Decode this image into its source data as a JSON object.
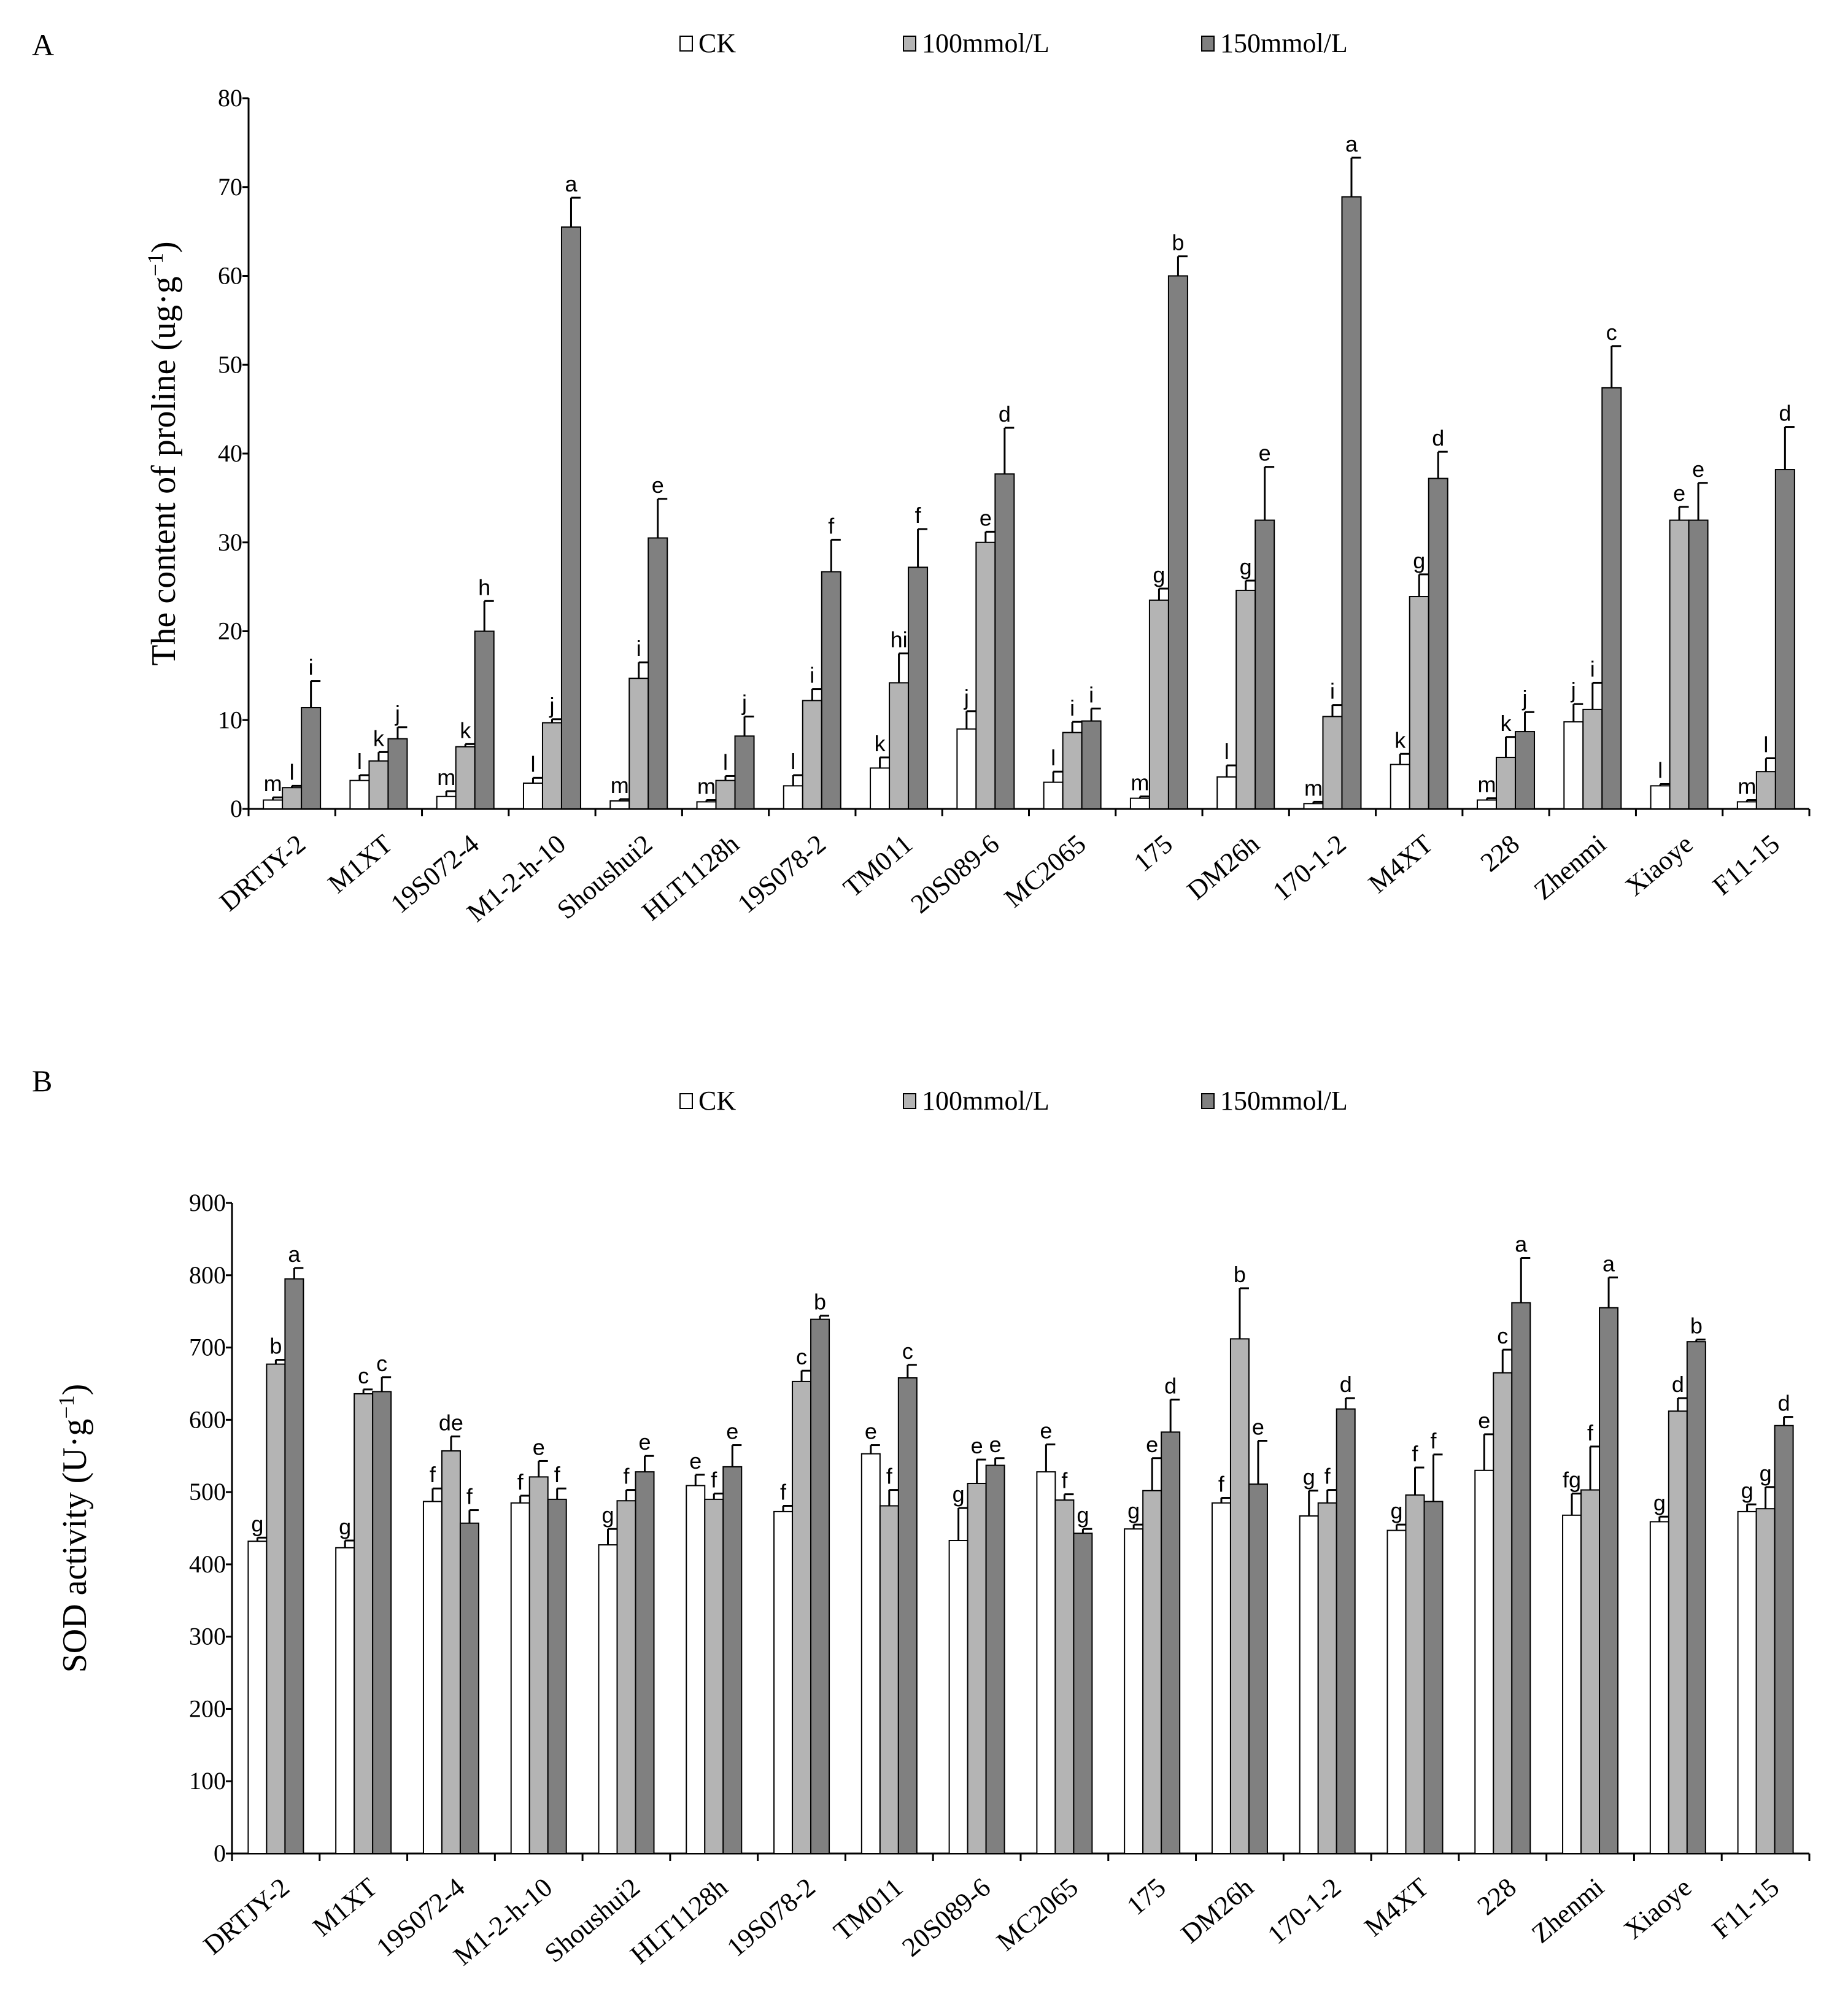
{
  "colors": {
    "CK": "#ffffff",
    "100mmol/L": "#b4b4b4",
    "150mmol/L": "#808080",
    "axis": "#000000"
  },
  "chart_data": [
    {
      "type": "bar",
      "panel": "A",
      "title": "",
      "xlabel": "",
      "ylabel": "The content of proline (ug·g⁻¹)",
      "ylabel_base": "The content of proline (ug·g",
      "ylabel_sup": "−1",
      "ylabel_close": ")",
      "ylim": [
        0,
        80
      ],
      "yticks": [
        0,
        10,
        20,
        30,
        40,
        50,
        60,
        70,
        80
      ],
      "legend_position": "top",
      "categories": [
        "DRTJY-2",
        "M1XT",
        "19S072-4",
        "M1-2-h-10",
        "Shoushui2",
        "HLT1128h",
        "19S078-2",
        "TM011",
        "20S089-6",
        "MC2065",
        "175",
        "DM26h",
        "170-1-2",
        "M4XT",
        "228",
        "Zhenmi",
        "Xiaoye",
        "F11-15"
      ],
      "series": [
        {
          "name": "CK",
          "values": [
            1.0,
            3.2,
            1.4,
            2.9,
            0.9,
            0.8,
            2.6,
            4.6,
            9.0,
            3.0,
            1.2,
            3.6,
            0.6,
            5.0,
            1.0,
            9.8,
            2.6,
            0.8
          ],
          "errors": [
            0.3,
            0.6,
            0.6,
            0.6,
            0.2,
            0.2,
            1.2,
            1.2,
            2.0,
            1.2,
            0.2,
            1.3,
            0.2,
            1.2,
            0.2,
            2.0,
            0.2,
            0.2
          ],
          "labels": [
            "m",
            "l",
            "m",
            "l",
            "m",
            "m",
            "l",
            "k",
            "j",
            "l",
            "m",
            "l",
            "m",
            "k",
            "m",
            "j",
            "l",
            "m"
          ]
        },
        {
          "name": "100mmol/L",
          "values": [
            2.4,
            5.4,
            7.0,
            9.7,
            14.7,
            3.2,
            12.2,
            14.2,
            30.0,
            8.6,
            23.5,
            24.6,
            10.4,
            23.9,
            5.8,
            11.2,
            32.5,
            4.2
          ],
          "errors": [
            0.2,
            1.0,
            0.3,
            0.4,
            1.8,
            0.5,
            1.3,
            3.3,
            1.2,
            1.2,
            1.3,
            1.1,
            1.3,
            2.5,
            2.3,
            3.0,
            1.5,
            1.5
          ],
          "labels": [
            "l",
            "k",
            "k",
            "j",
            "i",
            "l",
            "i",
            "hi",
            "e",
            "i",
            "g",
            "g",
            "i",
            "g",
            "k",
            "i",
            "e",
            "l"
          ]
        },
        {
          "name": "150mmol/L",
          "values": [
            11.4,
            7.9,
            20.0,
            65.5,
            30.5,
            8.2,
            26.7,
            27.2,
            37.7,
            9.9,
            60.0,
            32.5,
            68.9,
            37.2,
            8.7,
            47.4,
            32.5,
            38.2
          ],
          "errors": [
            3.0,
            1.3,
            3.4,
            3.3,
            4.4,
            2.2,
            3.6,
            4.3,
            5.2,
            1.4,
            2.2,
            6.0,
            4.4,
            3.0,
            2.2,
            4.7,
            4.2,
            4.8
          ],
          "labels": [
            "i",
            "j",
            "h",
            "a",
            "e",
            "j",
            "f",
            "f",
            "d",
            "i",
            "b",
            "e",
            "a",
            "d",
            "j",
            "c",
            "e",
            "d"
          ]
        }
      ]
    },
    {
      "type": "bar",
      "panel": "B",
      "title": "",
      "xlabel": "",
      "ylabel": "SOD activity (U·g⁻¹)",
      "ylabel_base": "SOD activity (U·g",
      "ylabel_sup": "−1",
      "ylabel_close": ")",
      "ylim": [
        0,
        900
      ],
      "yticks": [
        0,
        100,
        200,
        300,
        400,
        500,
        600,
        700,
        800,
        900
      ],
      "legend_position": "top",
      "categories": [
        "DRTJY-2",
        "M1XT",
        "19S072-4",
        "M1-2-h-10",
        "Shoushui2",
        "HLT1128h",
        "19S078-2",
        "TM011",
        "20S089-6",
        "MC2065",
        "175",
        "DM26h",
        "170-1-2",
        "M4XT",
        "228",
        "Zhenmi",
        "Xiaoye",
        "F11-15"
      ],
      "series": [
        {
          "name": "CK",
          "values": [
            432,
            423,
            487,
            485,
            427,
            509,
            473,
            553,
            433,
            528,
            449,
            485,
            467,
            447,
            530,
            468,
            459,
            473
          ],
          "errors": [
            5,
            10,
            18,
            10,
            22,
            15,
            8,
            12,
            45,
            38,
            6,
            7,
            35,
            8,
            50,
            30,
            7,
            10
          ],
          "labels": [
            "g",
            "g",
            "f",
            "f",
            "g",
            "e",
            "f",
            "e",
            "g",
            "e",
            "g",
            "f",
            "g",
            "g",
            "e",
            "fg",
            "g",
            "g"
          ]
        },
        {
          "name": "100mmol/L",
          "values": [
            677,
            636,
            557,
            521,
            488,
            490,
            653,
            481,
            512,
            489,
            502,
            712,
            485,
            496,
            665,
            503,
            612,
            477
          ],
          "errors": [
            6,
            6,
            20,
            22,
            15,
            8,
            15,
            22,
            33,
            8,
            45,
            70,
            18,
            38,
            32,
            60,
            18,
            30
          ],
          "labels": [
            "b",
            "c",
            "de",
            "e",
            "f",
            "f",
            "c",
            "f",
            "e",
            "f",
            "e",
            "b",
            "f",
            "f",
            "c",
            "f",
            "d",
            "g"
          ]
        },
        {
          "name": "150mmol/L",
          "values": [
            795,
            639,
            457,
            490,
            528,
            535,
            739,
            658,
            537,
            443,
            583,
            511,
            615,
            487,
            762,
            755,
            708,
            592
          ],
          "errors": [
            15,
            20,
            18,
            15,
            22,
            30,
            5,
            18,
            10,
            6,
            45,
            60,
            15,
            65,
            62,
            42,
            3,
            12
          ],
          "labels": [
            "a",
            "c",
            "f",
            "f",
            "e",
            "e",
            "b",
            "c",
            "e",
            "g",
            "d",
            "e",
            "d",
            "f",
            "a",
            "a",
            "b",
            "d"
          ]
        }
      ]
    }
  ]
}
